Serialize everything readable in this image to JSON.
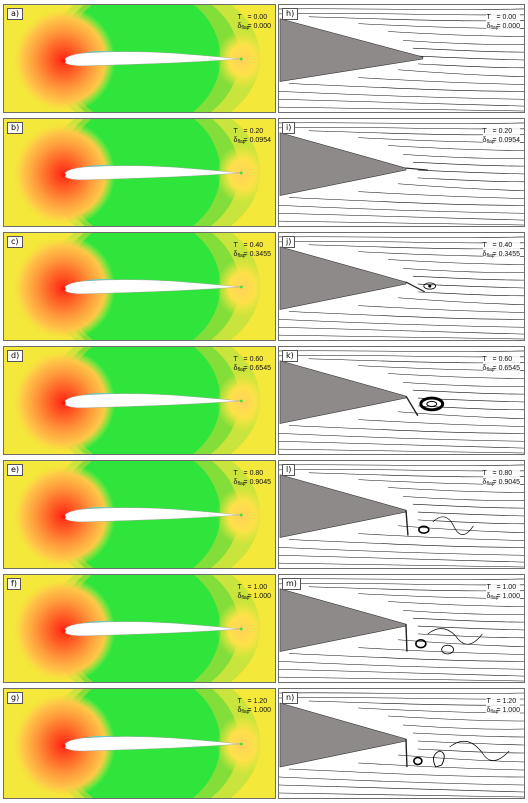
{
  "panels": [
    {
      "left_tag": "a)",
      "right_tag": "h)",
      "T": "= 0.00",
      "delta": "= 0.000"
    },
    {
      "left_tag": "b)",
      "right_tag": "i)",
      "T": "= 0.20",
      "delta": "= 0.0954"
    },
    {
      "left_tag": "c)",
      "right_tag": "j)",
      "T": "= 0.40",
      "delta": "= 0.3455"
    },
    {
      "left_tag": "d)",
      "right_tag": "k)",
      "T": "= 0.60",
      "delta": "= 0.6545"
    },
    {
      "left_tag": "e)",
      "right_tag": "l)",
      "T": "= 0.80",
      "delta": "= 0.9045"
    },
    {
      "left_tag": "f)",
      "right_tag": "m)",
      "T": "= 1.00",
      "delta": "= 1.000"
    },
    {
      "left_tag": "g)",
      "right_tag": "n)",
      "T": "= 1.20",
      "delta": "= 1.000"
    }
  ],
  "symbols": {
    "T": "T",
    "delta": "δ",
    "delta_sub": "flap"
  },
  "colors": {
    "far_field": "#f4e83a",
    "mid_field": "#c6e23c",
    "suction": "#2fe53c",
    "stagnation": "#ff2414",
    "near_stagnation": "#ff8d3a",
    "leading_edge_suction": "#38d6df",
    "airfoil": "#ffffff",
    "wedge": "#8f8a8a"
  }
}
